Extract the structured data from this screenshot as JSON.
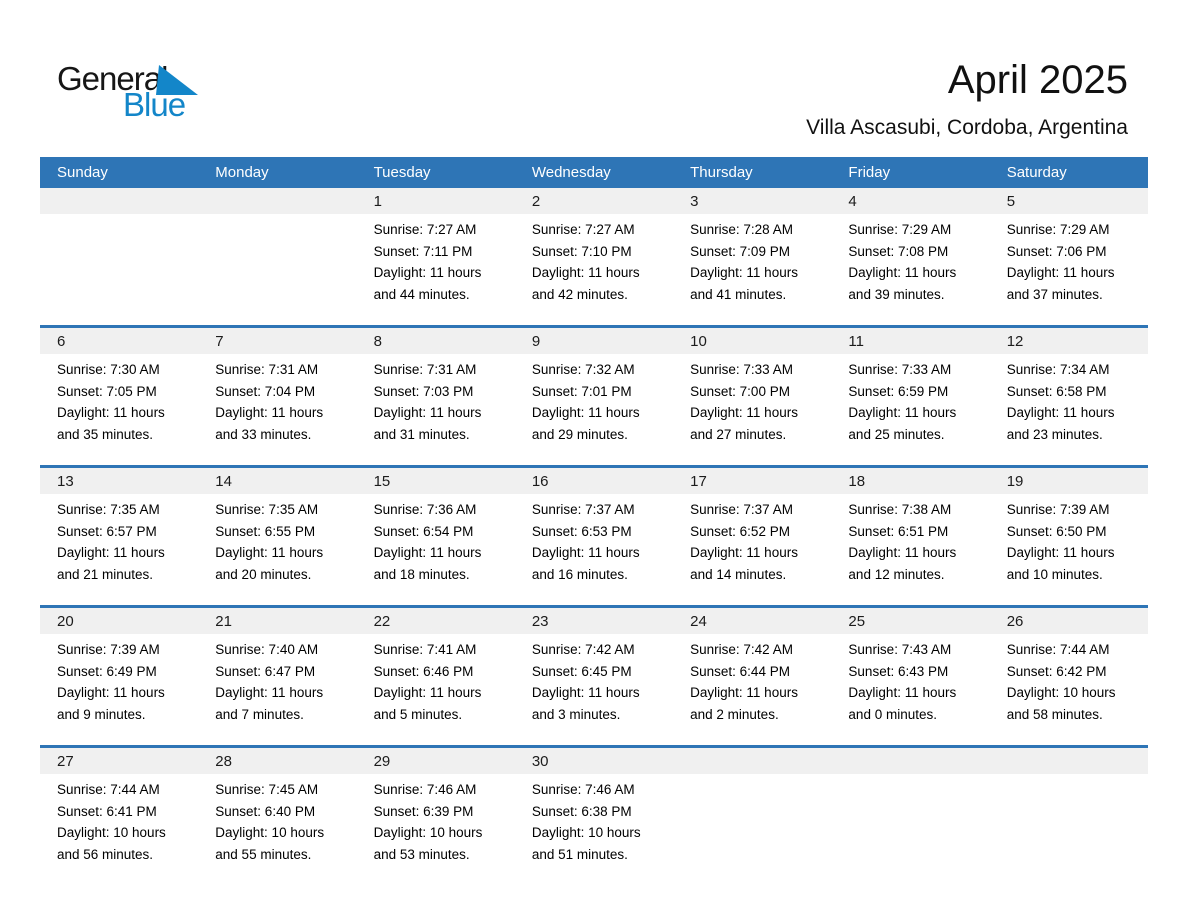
{
  "logo": {
    "part1": "General",
    "part2": "Blue",
    "triangle_icon": "flag-triangle"
  },
  "header": {
    "title": "April 2025",
    "subtitle": "Villa Ascasubi, Cordoba, Argentina"
  },
  "colors": {
    "header_blue": "#2E75B6",
    "week_divider_blue": "#2E75B6",
    "number_band_gray": "#F0F0F0",
    "logo_blue": "#1386C9"
  },
  "weekdays": [
    "Sunday",
    "Monday",
    "Tuesday",
    "Wednesday",
    "Thursday",
    "Friday",
    "Saturday"
  ],
  "weeks": [
    [
      {},
      {},
      {
        "date": "1",
        "lines": [
          "Sunrise: 7:27 AM",
          "Sunset: 7:11 PM",
          "Daylight: 11 hours",
          "and 44 minutes."
        ]
      },
      {
        "date": "2",
        "lines": [
          "Sunrise: 7:27 AM",
          "Sunset: 7:10 PM",
          "Daylight: 11 hours",
          "and 42 minutes."
        ]
      },
      {
        "date": "3",
        "lines": [
          "Sunrise: 7:28 AM",
          "Sunset: 7:09 PM",
          "Daylight: 11 hours",
          "and 41 minutes."
        ]
      },
      {
        "date": "4",
        "lines": [
          "Sunrise: 7:29 AM",
          "Sunset: 7:08 PM",
          "Daylight: 11 hours",
          "and 39 minutes."
        ]
      },
      {
        "date": "5",
        "lines": [
          "Sunrise: 7:29 AM",
          "Sunset: 7:06 PM",
          "Daylight: 11 hours",
          "and 37 minutes."
        ]
      }
    ],
    [
      {
        "date": "6",
        "lines": [
          "Sunrise: 7:30 AM",
          "Sunset: 7:05 PM",
          "Daylight: 11 hours",
          "and 35 minutes."
        ]
      },
      {
        "date": "7",
        "lines": [
          "Sunrise: 7:31 AM",
          "Sunset: 7:04 PM",
          "Daylight: 11 hours",
          "and 33 minutes."
        ]
      },
      {
        "date": "8",
        "lines": [
          "Sunrise: 7:31 AM",
          "Sunset: 7:03 PM",
          "Daylight: 11 hours",
          "and 31 minutes."
        ]
      },
      {
        "date": "9",
        "lines": [
          "Sunrise: 7:32 AM",
          "Sunset: 7:01 PM",
          "Daylight: 11 hours",
          "and 29 minutes."
        ]
      },
      {
        "date": "10",
        "lines": [
          "Sunrise: 7:33 AM",
          "Sunset: 7:00 PM",
          "Daylight: 11 hours",
          "and 27 minutes."
        ]
      },
      {
        "date": "11",
        "lines": [
          "Sunrise: 7:33 AM",
          "Sunset: 6:59 PM",
          "Daylight: 11 hours",
          "and 25 minutes."
        ]
      },
      {
        "date": "12",
        "lines": [
          "Sunrise: 7:34 AM",
          "Sunset: 6:58 PM",
          "Daylight: 11 hours",
          "and 23 minutes."
        ]
      }
    ],
    [
      {
        "date": "13",
        "lines": [
          "Sunrise: 7:35 AM",
          "Sunset: 6:57 PM",
          "Daylight: 11 hours",
          "and 21 minutes."
        ]
      },
      {
        "date": "14",
        "lines": [
          "Sunrise: 7:35 AM",
          "Sunset: 6:55 PM",
          "Daylight: 11 hours",
          "and 20 minutes."
        ]
      },
      {
        "date": "15",
        "lines": [
          "Sunrise: 7:36 AM",
          "Sunset: 6:54 PM",
          "Daylight: 11 hours",
          "and 18 minutes."
        ]
      },
      {
        "date": "16",
        "lines": [
          "Sunrise: 7:37 AM",
          "Sunset: 6:53 PM",
          "Daylight: 11 hours",
          "and 16 minutes."
        ]
      },
      {
        "date": "17",
        "lines": [
          "Sunrise: 7:37 AM",
          "Sunset: 6:52 PM",
          "Daylight: 11 hours",
          "and 14 minutes."
        ]
      },
      {
        "date": "18",
        "lines": [
          "Sunrise: 7:38 AM",
          "Sunset: 6:51 PM",
          "Daylight: 11 hours",
          "and 12 minutes."
        ]
      },
      {
        "date": "19",
        "lines": [
          "Sunrise: 7:39 AM",
          "Sunset: 6:50 PM",
          "Daylight: 11 hours",
          "and 10 minutes."
        ]
      }
    ],
    [
      {
        "date": "20",
        "lines": [
          "Sunrise: 7:39 AM",
          "Sunset: 6:49 PM",
          "Daylight: 11 hours",
          "and 9 minutes."
        ]
      },
      {
        "date": "21",
        "lines": [
          "Sunrise: 7:40 AM",
          "Sunset: 6:47 PM",
          "Daylight: 11 hours",
          "and 7 minutes."
        ]
      },
      {
        "date": "22",
        "lines": [
          "Sunrise: 7:41 AM",
          "Sunset: 6:46 PM",
          "Daylight: 11 hours",
          "and 5 minutes."
        ]
      },
      {
        "date": "23",
        "lines": [
          "Sunrise: 7:42 AM",
          "Sunset: 6:45 PM",
          "Daylight: 11 hours",
          "and 3 minutes."
        ]
      },
      {
        "date": "24",
        "lines": [
          "Sunrise: 7:42 AM",
          "Sunset: 6:44 PM",
          "Daylight: 11 hours",
          "and 2 minutes."
        ]
      },
      {
        "date": "25",
        "lines": [
          "Sunrise: 7:43 AM",
          "Sunset: 6:43 PM",
          "Daylight: 11 hours",
          "and 0 minutes."
        ]
      },
      {
        "date": "26",
        "lines": [
          "Sunrise: 7:44 AM",
          "Sunset: 6:42 PM",
          "Daylight: 10 hours",
          "and 58 minutes."
        ]
      }
    ],
    [
      {
        "date": "27",
        "lines": [
          "Sunrise: 7:44 AM",
          "Sunset: 6:41 PM",
          "Daylight: 10 hours",
          "and 56 minutes."
        ]
      },
      {
        "date": "28",
        "lines": [
          "Sunrise: 7:45 AM",
          "Sunset: 6:40 PM",
          "Daylight: 10 hours",
          "and 55 minutes."
        ]
      },
      {
        "date": "29",
        "lines": [
          "Sunrise: 7:46 AM",
          "Sunset: 6:39 PM",
          "Daylight: 10 hours",
          "and 53 minutes."
        ]
      },
      {
        "date": "30",
        "lines": [
          "Sunrise: 7:46 AM",
          "Sunset: 6:38 PM",
          "Daylight: 10 hours",
          "and 51 minutes."
        ]
      },
      {},
      {},
      {}
    ]
  ]
}
